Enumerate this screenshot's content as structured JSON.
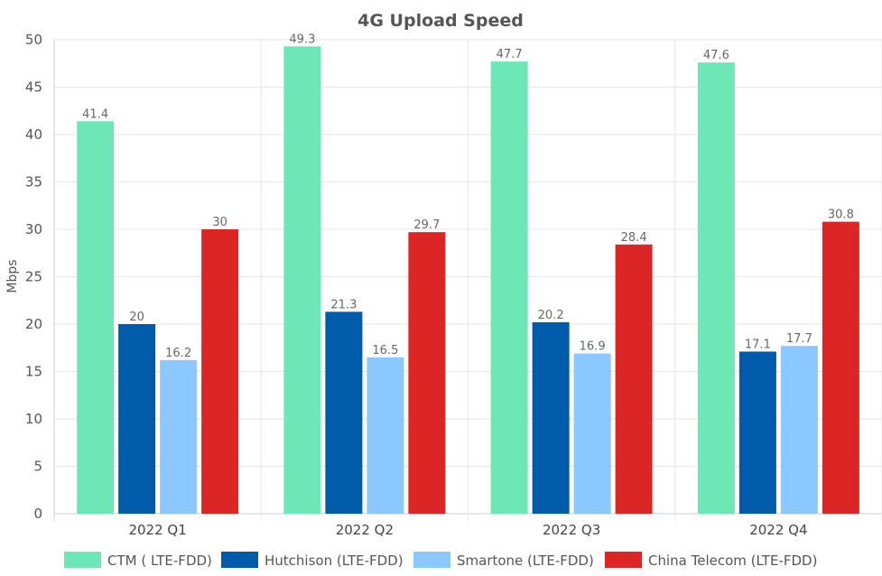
{
  "chart_data": {
    "type": "bar",
    "title": "4G Upload Speed",
    "ylabel": "Mbps",
    "xlabel": "",
    "ylim": [
      0,
      50
    ],
    "yticks": [
      0,
      5,
      10,
      15,
      20,
      25,
      30,
      35,
      40,
      45,
      50
    ],
    "grid": true,
    "legend_position": "bottom",
    "categories": [
      "2022 Q1",
      "2022 Q2",
      "2022 Q3",
      "2022 Q4"
    ],
    "series": [
      {
        "name": "CTM ( LTE-FDD)",
        "color": "#6ee7b7",
        "values": [
          41.4,
          49.3,
          47.7,
          47.6
        ],
        "labels": [
          "41.4",
          "49.3",
          "47.7",
          "47.6"
        ]
      },
      {
        "name": "Hutchison (LTE-FDD)",
        "color": "#005bab",
        "values": [
          20,
          21.3,
          20.2,
          17.1
        ],
        "labels": [
          "20",
          "21.3",
          "20.2",
          "17.1"
        ]
      },
      {
        "name": "Smartone (LTE-FDD)",
        "color": "#8ac8ff",
        "values": [
          16.2,
          16.5,
          16.9,
          17.7
        ],
        "labels": [
          "16.2",
          "16.5",
          "16.9",
          "17.7"
        ]
      },
      {
        "name": "China Telecom (LTE-FDD)",
        "color": "#dc2626",
        "values": [
          30,
          29.7,
          28.4,
          30.8
        ],
        "labels": [
          "30",
          "29.7",
          "28.4",
          "30.8"
        ]
      }
    ]
  }
}
